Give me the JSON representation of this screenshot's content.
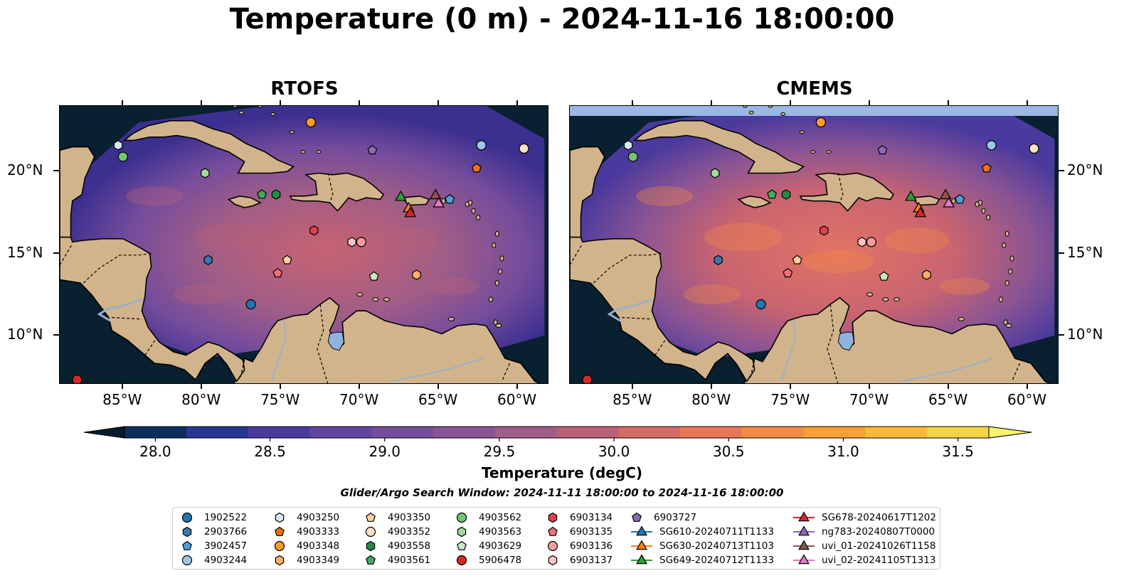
{
  "title": "Temperature (0 m) - 2024-11-16 18:00:00",
  "panels": [
    {
      "title": "RTOFS"
    },
    {
      "title": "CMEMS"
    }
  ],
  "map": {
    "lon_range": [
      -89.0,
      -58.0
    ],
    "lat_range": [
      7.0,
      24.0
    ],
    "lon_ticks": [
      "85°W",
      "80°W",
      "75°W",
      "70°W",
      "65°W",
      "60°W"
    ],
    "lat_ticks": [
      "20°N",
      "15°N",
      "10°N"
    ],
    "land_color": "#d2b48c",
    "deep_color": "#08202f",
    "lake_color": "#8fb3e0"
  },
  "colorbar": {
    "label": "Temperature (degC)",
    "ticks": [
      "28.0",
      "28.5",
      "29.0",
      "29.5",
      "30.0",
      "30.5",
      "31.0",
      "31.5"
    ],
    "min": 28.0,
    "max": 31.5,
    "colors": [
      "#0d2d5e",
      "#283593",
      "#4a3a9d",
      "#5f44a0",
      "#744c9c",
      "#8a5494",
      "#a05d87",
      "#b96277",
      "#d56a67",
      "#e87758",
      "#f38a45",
      "#fa9e36",
      "#fbb93a",
      "#f4d348"
    ],
    "under_color": "#061d2e",
    "over_color": "#f7f36b"
  },
  "search_window": "Glider/Argo Search Window: 2024-11-11 18:00:00 to 2024-11-16 18:00:00",
  "legend": [
    {
      "label": "1902522",
      "marker": "circle",
      "color": "#1f77b4"
    },
    {
      "label": "2903766",
      "marker": "hexagon",
      "color": "#3a78b0"
    },
    {
      "label": "3902457",
      "marker": "pentagon",
      "color": "#4f9fd8"
    },
    {
      "label": "4903244",
      "marker": "circle",
      "color": "#9ec8ea"
    },
    {
      "label": "4903250",
      "marker": "hexagon",
      "color": "#d6e9f7"
    },
    {
      "label": "4903333",
      "marker": "pentagon",
      "color": "#ec7014"
    },
    {
      "label": "4903348",
      "marker": "circle",
      "color": "#fd9a2c"
    },
    {
      "label": "4903349",
      "marker": "hexagon",
      "color": "#fdae6b"
    },
    {
      "label": "4903350",
      "marker": "pentagon",
      "color": "#fdd0a2"
    },
    {
      "label": "4903352",
      "marker": "circle",
      "color": "#fde0c5"
    },
    {
      "label": "4903558",
      "marker": "hexagon",
      "color": "#238b45"
    },
    {
      "label": "4903561",
      "marker": "pentagon",
      "color": "#41ab5d"
    },
    {
      "label": "4903562",
      "marker": "circle",
      "color": "#74c476"
    },
    {
      "label": "4903563",
      "marker": "hexagon",
      "color": "#a1d99b"
    },
    {
      "label": "4903629",
      "marker": "pentagon",
      "color": "#c7e9c0"
    },
    {
      "label": "5906478",
      "marker": "circle",
      "color": "#d62728"
    },
    {
      "label": "6903134",
      "marker": "hexagon",
      "color": "#e0424a"
    },
    {
      "label": "6903135",
      "marker": "pentagon",
      "color": "#ee6f76"
    },
    {
      "label": "6903136",
      "marker": "circle",
      "color": "#f49b9b"
    },
    {
      "label": "6903137",
      "marker": "hexagon",
      "color": "#fcc5c5"
    },
    {
      "label": "6903727",
      "marker": "pentagon",
      "color": "#8c6bb1"
    },
    {
      "label": "SG610-20240711T1133",
      "marker": "triangle",
      "color": "#1f77b4"
    },
    {
      "label": "SG630-20240713T1103",
      "marker": "triangle",
      "color": "#ff7f0e"
    },
    {
      "label": "SG649-20240712T1133",
      "marker": "triangle",
      "color": "#2ca02c"
    },
    {
      "label": "SG678-20240617T1202",
      "marker": "triangle",
      "color": "#d62728"
    },
    {
      "label": "ng783-20240807T0000",
      "marker": "triangle",
      "color": "#9467bd"
    },
    {
      "label": "uvi_01-20241026T1158",
      "marker": "triangle",
      "color": "#8c564b"
    },
    {
      "label": "uvi_02-20241105T1313",
      "marker": "triangle",
      "color": "#e377c2"
    }
  ],
  "observations": [
    {
      "id": "5906478",
      "lon": -87.9,
      "lat": 7.3
    },
    {
      "id": "4903250",
      "lon": -85.3,
      "lat": 21.6
    },
    {
      "id": "4903562",
      "lon": -85.0,
      "lat": 20.9
    },
    {
      "id": "4903563",
      "lon": -79.8,
      "lat": 19.9
    },
    {
      "id": "2903766",
      "lon": -79.6,
      "lat": 14.6
    },
    {
      "id": "1902522",
      "lon": -76.9,
      "lat": 11.9
    },
    {
      "id": "4903561",
      "lon": -76.2,
      "lat": 18.6
    },
    {
      "id": "4903558",
      "lon": -75.3,
      "lat": 18.6
    },
    {
      "id": "4903350",
      "lon": -74.6,
      "lat": 14.6
    },
    {
      "id": "6903135",
      "lon": -75.2,
      "lat": 13.8
    },
    {
      "id": "4903348",
      "lon": -73.1,
      "lat": 23.0
    },
    {
      "id": "6903134",
      "lon": -72.9,
      "lat": 16.4
    },
    {
      "id": "6903137",
      "lon": -70.5,
      "lat": 15.7
    },
    {
      "id": "6903136",
      "lon": -69.9,
      "lat": 15.7
    },
    {
      "id": "4903629",
      "lon": -69.1,
      "lat": 13.6
    },
    {
      "id": "6903727",
      "lon": -69.2,
      "lat": 21.3
    },
    {
      "id": "4903349",
      "lon": -66.4,
      "lat": 13.7
    },
    {
      "id": "3902457",
      "lon": -64.3,
      "lat": 18.3
    },
    {
      "id": "4903333",
      "lon": -62.6,
      "lat": 20.2
    },
    {
      "id": "4903244",
      "lon": -62.3,
      "lat": 21.6
    },
    {
      "id": "4903352",
      "lon": -59.6,
      "lat": 21.4
    }
  ],
  "gliders": [
    {
      "id": "SG649-20240712T1133",
      "lon": -67.4,
      "lat": 18.5
    },
    {
      "id": "SG630-20240713T1103",
      "lon": -66.9,
      "lat": 17.8
    },
    {
      "id": "SG678-20240617T1202",
      "lon": -66.8,
      "lat": 17.5
    },
    {
      "id": "uvi_01-20241026T1158",
      "lon": -65.2,
      "lat": 18.6
    },
    {
      "id": "uvi_02-20241105T1313",
      "lon": -65.0,
      "lat": 18.1
    }
  ]
}
